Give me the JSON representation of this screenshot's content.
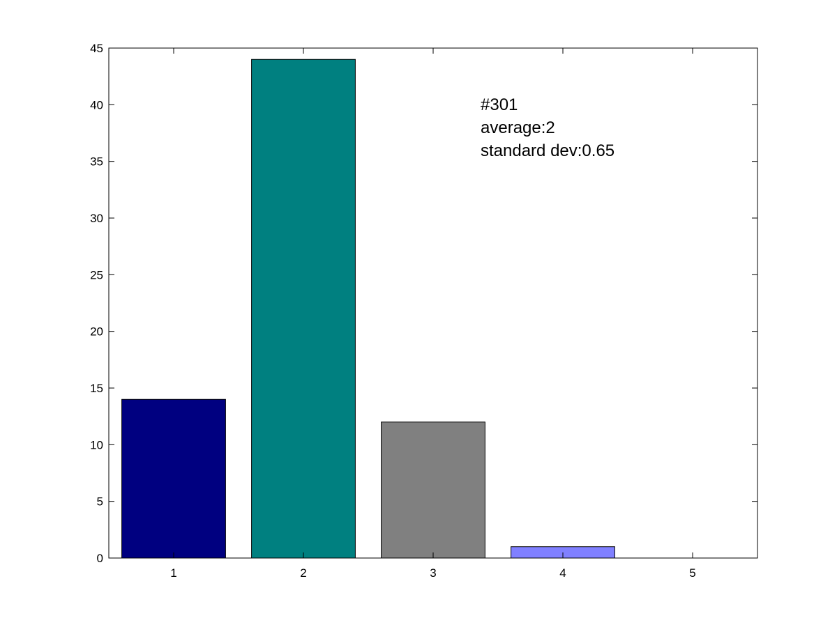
{
  "chart_data": {
    "type": "bar",
    "categories": [
      "1",
      "2",
      "3",
      "4",
      "5"
    ],
    "values": [
      14,
      44,
      12,
      1,
      0
    ],
    "bar_colors": [
      "#000080",
      "#008080",
      "#808080",
      "#8080ff",
      "#ffffff"
    ],
    "title": "",
    "xlabel": "",
    "ylabel": "",
    "ylim": [
      0,
      45
    ],
    "xlim": [
      0.5,
      5.5
    ],
    "yticks": [
      "0",
      "5",
      "10",
      "15",
      "20",
      "25",
      "30",
      "35",
      "40",
      "45"
    ],
    "grid": false,
    "legend": "none",
    "annotation": {
      "line1": "#301",
      "line2": "average:2",
      "line3": "standard dev:0.65"
    }
  }
}
